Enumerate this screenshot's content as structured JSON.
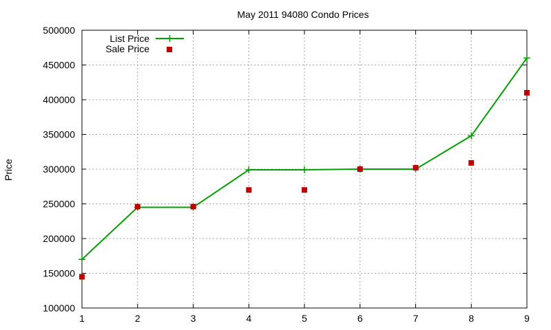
{
  "chart_data": {
    "type": "line",
    "title": "May 2011 94080 Condo Prices",
    "xlabel": "",
    "ylabel": "Price",
    "x": [
      1,
      2,
      3,
      4,
      5,
      6,
      7,
      8,
      9
    ],
    "xlim": [
      1,
      9
    ],
    "ylim": [
      100000,
      500000
    ],
    "xticks": [
      1,
      2,
      3,
      4,
      5,
      6,
      7,
      8,
      9
    ],
    "yticks": [
      100000,
      150000,
      200000,
      250000,
      300000,
      350000,
      400000,
      450000,
      500000
    ],
    "grid": true,
    "legend_position": "top-left",
    "series": [
      {
        "name": "List Price",
        "style": "line-with-plus-markers",
        "color": "#00a000",
        "values": [
          170000,
          245000,
          245000,
          299000,
          299000,
          300000,
          300000,
          348000,
          460000
        ]
      },
      {
        "name": "Sale Price",
        "style": "square-markers",
        "color": "#c00000",
        "values": [
          145000,
          246000,
          246000,
          270000,
          270000,
          300000,
          302000,
          309000,
          410000
        ]
      }
    ]
  }
}
